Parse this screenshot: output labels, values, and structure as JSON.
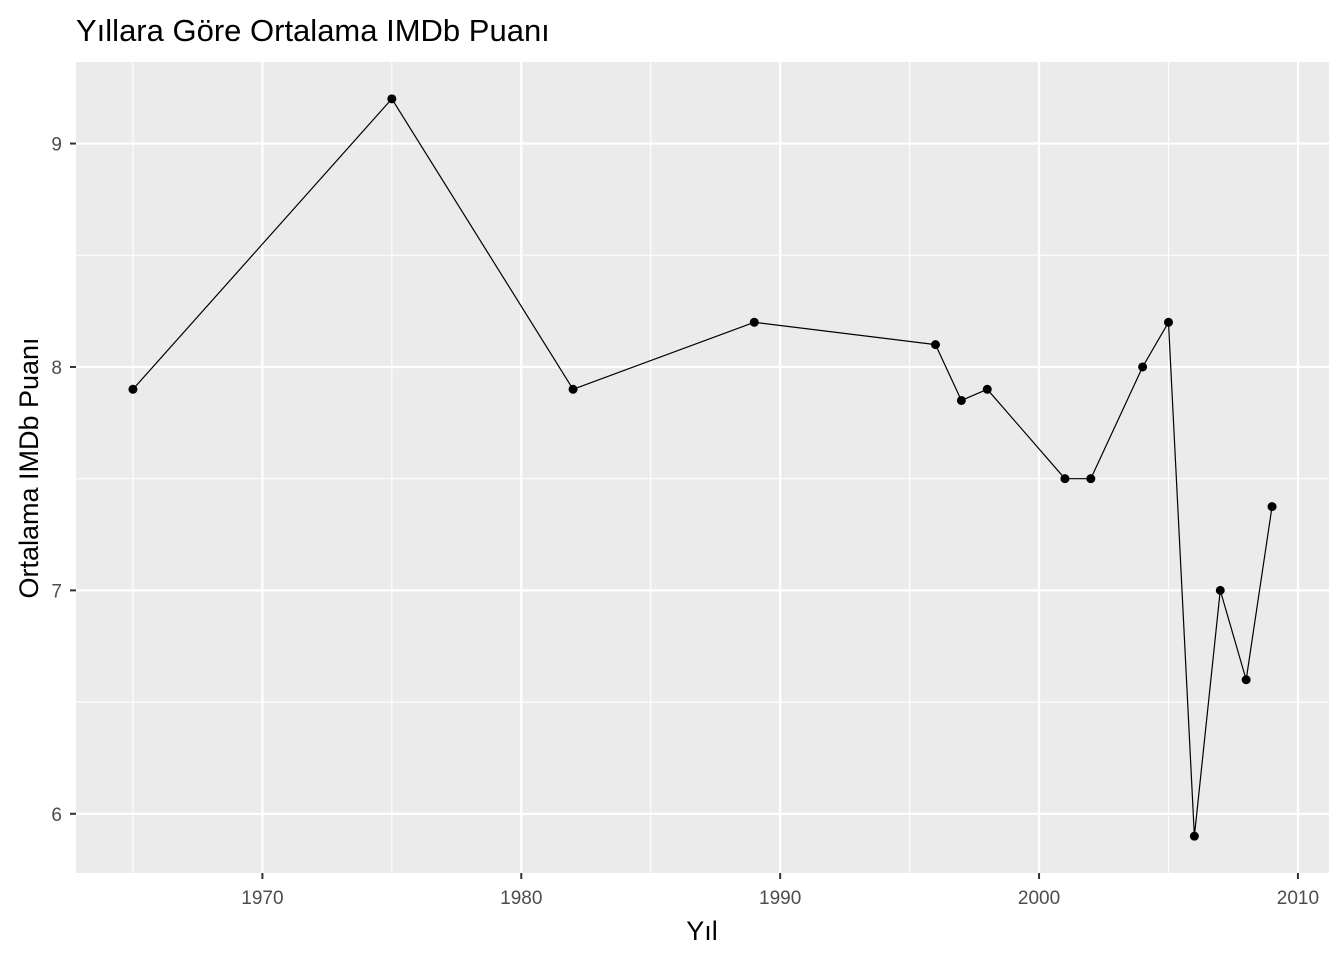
{
  "chart_data": {
    "type": "line",
    "title": "Yıllara Göre Ortalama IMDb Puanı",
    "xlabel": "Yıl",
    "ylabel": "Ortalama IMDb Puanı",
    "x_ticks": [
      1970,
      1980,
      1990,
      2000,
      2010
    ],
    "y_ticks": [
      6,
      7,
      8,
      9
    ],
    "xlim": [
      1962.8,
      2011.2
    ],
    "ylim": [
      5.735,
      9.365
    ],
    "grid": true,
    "panel_background": "#EBEBEB",
    "gridline_color": "#FFFFFF",
    "line_color": "#000000",
    "point_color": "#000000",
    "series": [
      {
        "x": [
          1965,
          1975,
          1982,
          1989,
          1996,
          1997,
          1998,
          2001,
          2002,
          2004,
          2005,
          2006,
          2007,
          2008,
          2009
        ],
        "y": [
          7.9,
          9.2,
          7.9,
          8.2,
          8.1,
          7.85,
          7.9,
          7.5,
          7.5,
          8.0,
          8.2,
          5.9,
          7.0,
          6.6,
          7.375
        ]
      }
    ]
  }
}
